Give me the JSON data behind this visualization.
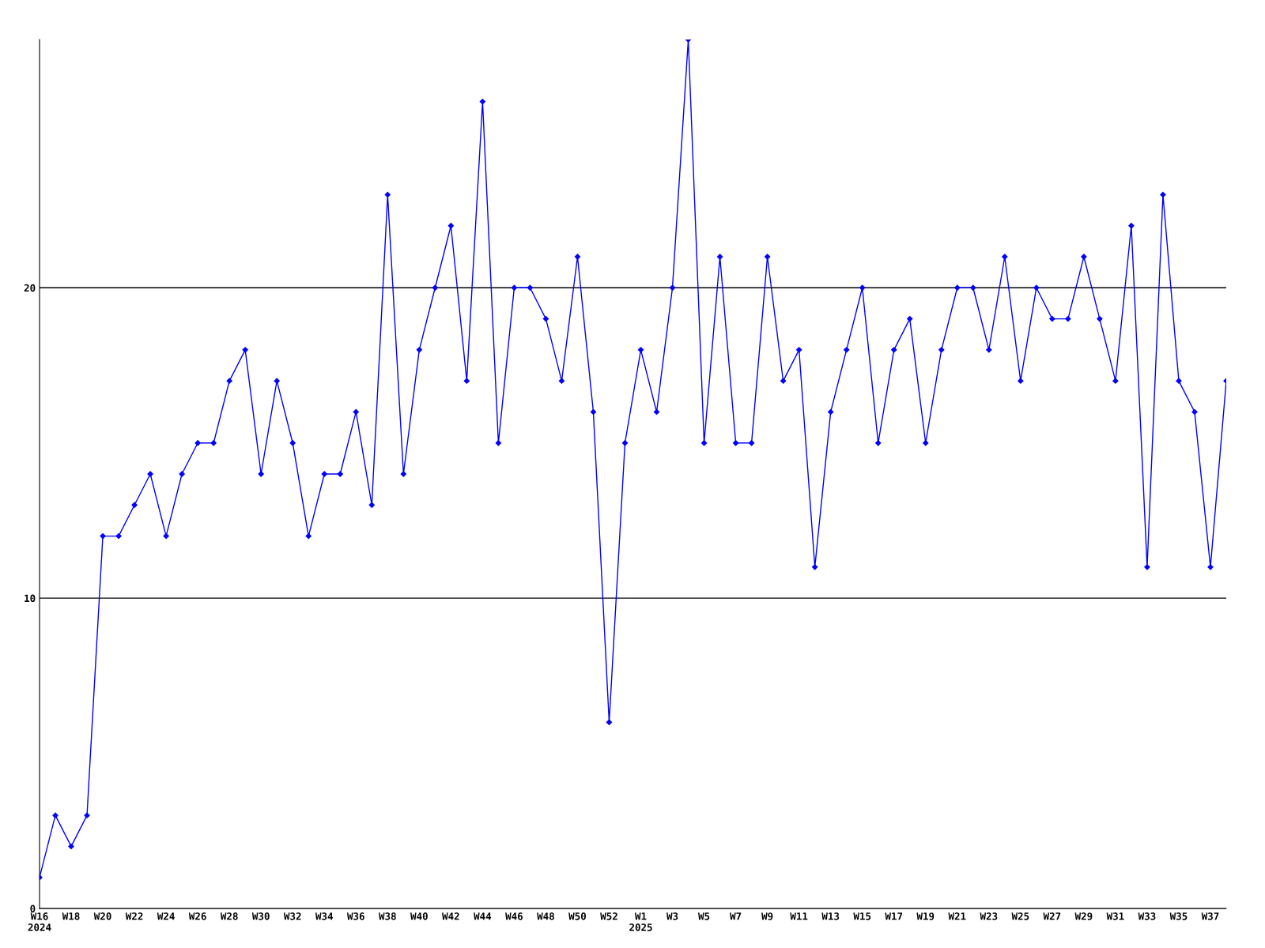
{
  "chart_data": {
    "type": "line",
    "categories": [
      "W16\n2024",
      null,
      "W18",
      null,
      "W20",
      null,
      "W22",
      null,
      "W24",
      null,
      "W26",
      null,
      "W28",
      null,
      "W30",
      null,
      "W32",
      null,
      "W34",
      null,
      "W36",
      null,
      "W38",
      null,
      "W40",
      null,
      "W42",
      null,
      "W44",
      null,
      "W46",
      null,
      "W48",
      null,
      "W50",
      null,
      "W52",
      null,
      "W1\n2025",
      null,
      "W3",
      null,
      "W5",
      null,
      "W7",
      null,
      "W9",
      null,
      "W11",
      null,
      "W13",
      null,
      "W15",
      null,
      "W17",
      null,
      "W19",
      null,
      "W21",
      null,
      "W23",
      null,
      "W25",
      null,
      "W27",
      null,
      "W29",
      null,
      "W31",
      null,
      "W33",
      null,
      "W35",
      null,
      "W37",
      null
    ],
    "series": [
      {
        "color": "#0000ff",
        "values": [
          1,
          3,
          2,
          3,
          12,
          12,
          13,
          14,
          12,
          14,
          15,
          15,
          17,
          18,
          14,
          17,
          15,
          12,
          14,
          14,
          16,
          13,
          23,
          14,
          18,
          20,
          22,
          17,
          26,
          15,
          20,
          20,
          19,
          17,
          21,
          16,
          6,
          15,
          18,
          16,
          20,
          28,
          15,
          21,
          15,
          15,
          21,
          17,
          18,
          11,
          16,
          18,
          20,
          15,
          18,
          19,
          15,
          18,
          20,
          20,
          18,
          21,
          17,
          20,
          19,
          19,
          21,
          19,
          17,
          22,
          11,
          23,
          17,
          16,
          11,
          17
        ]
      }
    ],
    "ylim": [
      0,
      28
    ],
    "yticks": [
      0,
      10,
      20
    ],
    "grid": "y",
    "marker": "diamond",
    "line_style": "solid",
    "legend": false
  }
}
